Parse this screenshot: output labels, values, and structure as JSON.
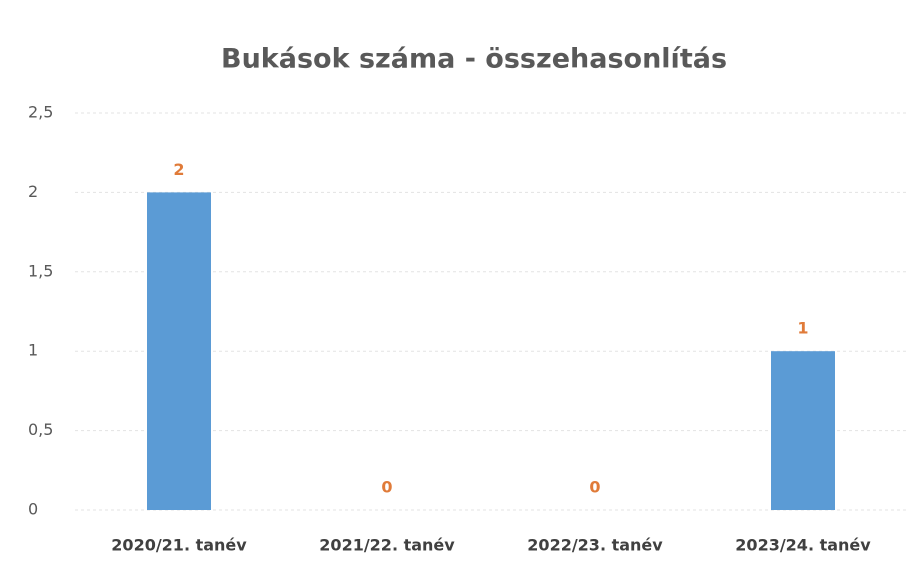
{
  "chart_data": {
    "type": "bar",
    "title": "Bukások száma - összehasonlítás",
    "categories": [
      "2020/21. tanév",
      "2021/22. tanév",
      "2022/23. tanév",
      "2023/24. tanév"
    ],
    "values": [
      2,
      0,
      0,
      1
    ],
    "color": "#5b9bd5",
    "label_color": "#e07b39",
    "ylim": [
      0,
      2.5
    ],
    "yticks": [
      0,
      {
        "value": 0.5,
        "label": "0,5"
      },
      1,
      {
        "value": 1.5,
        "label": "1,5"
      },
      2,
      {
        "value": 2.5,
        "label": "2,5"
      }
    ],
    "grid": true
  }
}
